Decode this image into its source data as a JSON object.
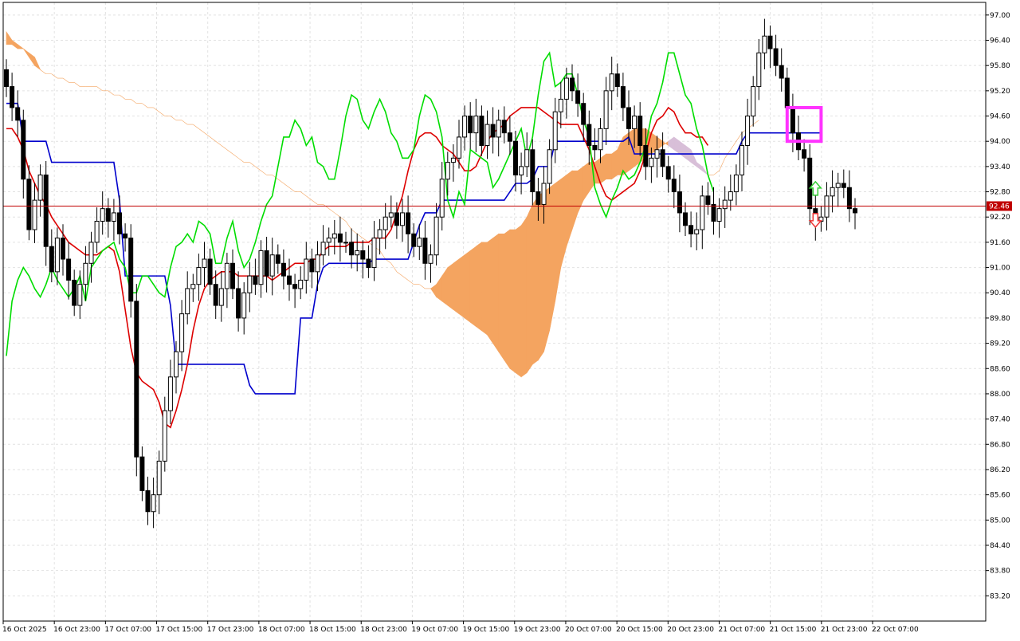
{
  "chart_data": {
    "type": "candlestick",
    "price_axis": {
      "min": 82.6,
      "max": 97.3,
      "ticks": [
        "97.00",
        "96.40",
        "95.80",
        "95.20",
        "94.60",
        "94.00",
        "93.40",
        "92.80",
        "92.20",
        "91.60",
        "91.00",
        "90.40",
        "89.80",
        "89.20",
        "88.60",
        "88.00",
        "87.40",
        "86.80",
        "86.20",
        "85.60",
        "85.00",
        "84.40",
        "83.80",
        "83.20"
      ]
    },
    "time_axis": {
      "labels": [
        "16 Oct 2025",
        "16 Oct 23:00",
        "17 Oct 07:00",
        "17 Oct 15:00",
        "17 Oct 23:00",
        "18 Oct 07:00",
        "18 Oct 15:00",
        "18 Oct 23:00",
        "19 Oct 07:00",
        "19 Oct 15:00",
        "19 Oct 23:00",
        "20 Oct 07:00",
        "20 Oct 15:00",
        "20 Oct 23:00",
        "21 Oct 07:00",
        "21 Oct 15:00",
        "21 Oct 23:00",
        "22 Oct 07:00"
      ]
    },
    "current_price": {
      "value": 92.46,
      "label": "92.46",
      "color": "#c00000"
    },
    "grid": true,
    "colors": {
      "tenkan": "#dd0000",
      "kijun": "#0000cc",
      "chikou": "#00dd00",
      "cloud_bull": "#f4a460",
      "cloud_bear": "#d8bfd8",
      "candle_bull": "#ffffff",
      "candle_bear": "#000000",
      "candle_outline": "#000000",
      "box": "#ff33ff",
      "arrow_up": "#33cc33",
      "arrow_down": "#ee3333",
      "current_line": "#c00000"
    },
    "series": {
      "close": [
        95.3,
        94.8,
        94.5,
        93.1,
        91.9,
        92.6,
        93.2,
        91.5,
        90.9,
        91.7,
        91.2,
        90.7,
        90.1,
        90.6,
        91.1,
        91.6,
        92.1,
        92.4,
        92.1,
        92.3,
        91.8,
        91.7,
        90.2,
        86.5,
        85.7,
        85.2,
        85.6,
        86.4,
        87.6,
        88.4,
        89.0,
        89.9,
        90.5,
        90.6,
        91.0,
        91.2,
        90.6,
        90.1,
        90.5,
        91.1,
        90.5,
        89.8,
        90.4,
        90.8,
        90.6,
        91.4,
        90.8,
        91.3,
        91.1,
        90.8,
        90.6,
        90.5,
        90.7,
        91.2,
        90.9,
        91.3,
        91.6,
        91.7,
        91.8,
        91.6,
        91.6,
        91.3,
        91.4,
        91.2,
        91.0,
        91.7,
        91.9,
        92.2,
        92.3,
        92.0,
        92.3,
        91.8,
        91.5,
        91.7,
        91.1,
        91.3,
        92.2,
        93.1,
        93.5,
        93.6,
        94.1,
        94.6,
        94.2,
        94.6,
        93.9,
        94.4,
        94.1,
        94.5,
        94.2,
        94.0,
        93.2,
        93.4,
        93.8,
        92.8,
        92.5,
        93.0,
        93.8,
        94.7,
        95.0,
        95.5,
        95.2,
        94.9,
        94.4,
        93.9,
        93.8,
        94.3,
        95.2,
        95.6,
        95.3,
        94.8,
        94.3,
        94.6,
        93.9,
        93.4,
        93.6,
        93.8,
        93.4,
        93.1,
        92.8,
        92.3,
        92.0,
        91.8,
        91.9,
        92.7,
        92.5,
        92.1,
        92.4,
        92.6,
        92.8,
        93.2,
        93.9,
        94.6,
        95.3,
        96.1,
        96.5,
        96.2,
        95.8,
        95.5,
        94.8,
        94.2,
        93.8,
        93.6,
        92.4,
        92.1,
        92.2,
        92.7,
        92.9,
        93.0,
        92.9,
        92.4,
        92.3
      ],
      "open": [
        95.7,
        95.3,
        94.8,
        94.5,
        93.1,
        91.9,
        92.6,
        93.2,
        91.5,
        90.9,
        91.7,
        91.2,
        90.7,
        90.1,
        90.6,
        91.1,
        91.6,
        92.1,
        92.4,
        92.1,
        92.3,
        91.8,
        91.7,
        90.2,
        86.5,
        85.7,
        85.2,
        85.6,
        86.4,
        87.6,
        88.4,
        89.0,
        89.9,
        90.5,
        90.6,
        91.0,
        91.2,
        90.6,
        90.1,
        90.5,
        91.1,
        90.5,
        89.8,
        90.4,
        90.8,
        90.6,
        91.4,
        90.8,
        91.3,
        91.1,
        90.8,
        90.6,
        90.5,
        90.7,
        91.2,
        90.9,
        91.3,
        91.6,
        91.7,
        91.8,
        91.6,
        91.6,
        91.3,
        91.4,
        91.2,
        91.0,
        91.7,
        91.9,
        92.2,
        92.3,
        92.0,
        92.3,
        91.8,
        91.5,
        91.7,
        91.1,
        91.3,
        92.2,
        93.1,
        93.5,
        93.6,
        94.1,
        94.6,
        94.2,
        94.6,
        93.9,
        94.4,
        94.1,
        94.5,
        94.2,
        94.0,
        93.2,
        93.4,
        93.8,
        92.8,
        92.5,
        93.0,
        93.8,
        94.7,
        95.0,
        95.5,
        95.2,
        94.9,
        94.4,
        93.9,
        93.8,
        94.3,
        95.2,
        95.6,
        95.3,
        94.8,
        94.3,
        94.6,
        93.9,
        93.4,
        93.6,
        93.8,
        93.4,
        93.1,
        92.8,
        92.3,
        92.0,
        91.8,
        91.9,
        92.7,
        92.5,
        92.1,
        92.4,
        92.6,
        92.8,
        93.2,
        93.9,
        94.6,
        95.3,
        96.1,
        96.5,
        96.2,
        95.8,
        95.5,
        94.8,
        94.2,
        93.8,
        93.6,
        92.4,
        92.1,
        92.2,
        92.7,
        92.9,
        93.0,
        92.9,
        92.4
      ],
      "tenkan": [
        94.3,
        94.3,
        94.1,
        93.8,
        93.3,
        93.0,
        92.7,
        92.5,
        92.2,
        92.0,
        91.8,
        91.6,
        91.5,
        91.4,
        91.3,
        91.3,
        91.3,
        91.4,
        91.5,
        91.4,
        90.9,
        90.0,
        89.1,
        88.5,
        88.3,
        88.2,
        88.1,
        87.8,
        87.3,
        87.2,
        87.6,
        88.1,
        88.7,
        89.5,
        90.1,
        90.5,
        90.7,
        90.8,
        90.9,
        90.9,
        90.9,
        90.8,
        90.8,
        90.8,
        90.8,
        90.8,
        90.8,
        90.7,
        90.8,
        90.9,
        91.0,
        91.1,
        91.1,
        91.1,
        91.2,
        91.2,
        91.4,
        91.5,
        91.5,
        91.5,
        91.5,
        91.6,
        91.6,
        91.6,
        91.6,
        91.7,
        91.7,
        91.7,
        91.9,
        92.3,
        92.7,
        93.3,
        93.8,
        94.1,
        94.2,
        94.2,
        94.1,
        93.9,
        93.8,
        93.7,
        93.5,
        93.3,
        93.3,
        93.4,
        93.7,
        94.0,
        94.2,
        94.3,
        94.4,
        94.6,
        94.7,
        94.8,
        94.8,
        94.8,
        94.8,
        94.7,
        94.6,
        94.5,
        94.4,
        94.4,
        94.4,
        94.4,
        94.1,
        93.8,
        93.4,
        93.0,
        92.7,
        92.6,
        92.7,
        92.8,
        92.9,
        93.0,
        93.3,
        93.7,
        94.2,
        94.5,
        94.6,
        94.8,
        94.7,
        94.4,
        94.2,
        94.2,
        94.1,
        94.1,
        93.9
      ],
      "kijun": [
        94.9,
        94.9,
        94.9,
        94.0,
        94.0,
        94.0,
        94.0,
        94.0,
        93.5,
        93.5,
        93.5,
        93.5,
        93.5,
        93.5,
        93.5,
        93.5,
        93.5,
        93.5,
        93.5,
        93.5,
        92.6,
        90.8,
        90.8,
        90.8,
        90.8,
        90.8,
        90.8,
        90.8,
        90.8,
        90.1,
        88.7,
        88.7,
        88.7,
        88.7,
        88.7,
        88.7,
        88.7,
        88.7,
        88.7,
        88.7,
        88.7,
        88.7,
        88.7,
        88.2,
        88.0,
        88.0,
        88.0,
        88.0,
        88.0,
        88.0,
        88.0,
        88.0,
        89.8,
        89.8,
        89.8,
        90.6,
        91.0,
        91.1,
        91.1,
        91.1,
        91.1,
        91.1,
        91.1,
        91.1,
        91.1,
        91.2,
        91.2,
        91.2,
        91.2,
        91.2,
        91.2,
        91.2,
        91.6,
        92.0,
        92.3,
        92.3,
        92.3,
        92.6,
        92.6,
        92.6,
        92.6,
        92.6,
        92.6,
        92.6,
        92.6,
        92.6,
        92.6,
        92.6,
        92.6,
        92.8,
        93.0,
        93.0,
        93.0,
        93.1,
        93.4,
        93.4,
        93.4,
        94.0,
        94.0,
        94.0,
        94.0,
        94.0,
        94.0,
        94.0,
        94.0,
        94.0,
        94.0,
        94.0,
        94.0,
        94.0,
        94.1,
        93.7,
        93.7,
        93.7,
        93.7,
        93.7,
        93.7,
        93.7,
        93.7,
        93.7,
        93.7,
        93.7,
        93.7,
        93.7,
        93.7,
        93.7,
        93.7,
        93.7,
        93.7,
        93.7,
        94.0,
        94.2,
        94.2,
        94.2,
        94.2,
        94.2,
        94.2,
        94.2,
        94.2,
        94.2,
        94.2,
        94.2,
        94.2,
        94.2,
        94.2
      ],
      "chikou": [
        88.9,
        90.2,
        90.7,
        91.0,
        90.8,
        90.5,
        90.3,
        90.6,
        91.0,
        90.7,
        90.5,
        90.3,
        90.5,
        90.8,
        90.2,
        91.0,
        91.2,
        91.4,
        91.5,
        91.6,
        91.2,
        91.0,
        90.4,
        90.4,
        90.8,
        90.8,
        90.6,
        90.4,
        90.3,
        91.0,
        91.5,
        91.6,
        91.8,
        91.6,
        92.1,
        92.0,
        91.8,
        91.1,
        91.1,
        91.7,
        92.1,
        91.4,
        91.0,
        91.2,
        91.6,
        92.1,
        92.5,
        92.7,
        93.4,
        94.1,
        94.1,
        94.5,
        94.3,
        93.9,
        94.1,
        93.5,
        93.4,
        93.1,
        93.1,
        93.8,
        94.6,
        95.1,
        95.0,
        94.5,
        94.3,
        94.7,
        95.0,
        94.7,
        94.2,
        94.0,
        93.6,
        93.6,
        93.8,
        94.6,
        95.1,
        95.0,
        94.7,
        94.1,
        92.6,
        92.2,
        92.8,
        92.5,
        93.8,
        93.7,
        93.6,
        93.5,
        92.9,
        93.1,
        93.4,
        93.7,
        94.0,
        94.3,
        93.6,
        94.1,
        95.1,
        95.9,
        96.1,
        95.3,
        95.4,
        95.6,
        95.6,
        95.1,
        94.5,
        94.1,
        92.9,
        92.5,
        92.2,
        92.6,
        92.9,
        93.3,
        93.1,
        93.2,
        93.5,
        93.9,
        94.6,
        94.9,
        95.4,
        96.1,
        96.1,
        95.6,
        95.1,
        94.9,
        94.3,
        93.9,
        93.2,
        92.8
      ],
      "senkou_a": [
        96.6,
        96.4,
        96.3,
        96.2,
        96.1,
        96.0,
        95.7,
        95.6,
        95.6,
        95.5,
        95.5,
        95.4,
        95.4,
        95.3,
        95.3,
        95.3,
        95.3,
        95.2,
        95.2,
        95.1,
        95.1,
        95.0,
        95.0,
        94.9,
        94.9,
        94.8,
        94.8,
        94.7,
        94.6,
        94.6,
        94.5,
        94.5,
        94.4,
        94.4,
        94.3,
        94.2,
        94.1,
        94.0,
        93.9,
        93.8,
        93.7,
        93.6,
        93.5,
        93.5,
        93.4,
        93.3,
        93.2,
        93.2,
        93.1,
        93.0,
        92.9,
        92.8,
        92.8,
        92.7,
        92.6,
        92.5,
        92.5,
        92.4,
        92.3,
        92.2,
        92.1,
        91.9,
        91.8,
        91.7,
        91.6,
        91.5,
        91.4,
        91.2,
        91.1,
        90.9,
        90.8,
        90.7,
        90.6,
        90.6,
        90.5,
        90.5,
        90.6,
        90.8,
        91.0,
        91.1,
        91.2,
        91.3,
        91.4,
        91.5,
        91.6,
        91.6,
        91.7,
        91.8,
        91.8,
        91.9,
        91.9,
        92.0,
        92.2,
        92.5,
        92.7,
        92.8,
        92.9,
        93.0,
        93.1,
        93.2,
        93.3,
        93.3,
        93.4,
        93.5,
        93.5,
        93.6,
        93.7,
        93.7,
        93.8,
        94.1,
        94.2,
        94.3,
        94.3,
        94.3,
        94.2,
        94.1,
        94.0,
        93.9,
        93.8,
        93.7,
        93.6,
        93.5,
        93.4,
        93.3,
        93.2,
        93.2,
        93.3,
        93.6,
        93.8,
        94.0,
        94.2,
        94.3,
        94.4,
        94.5
      ],
      "senkou_b": [
        96.3,
        96.3,
        96.2,
        96.2,
        96.0,
        95.8,
        95.7,
        95.6,
        95.6,
        95.5,
        95.5,
        95.4,
        95.4,
        95.3,
        95.3,
        95.3,
        95.3,
        95.2,
        95.2,
        95.1,
        95.1,
        95.0,
        95.0,
        94.9,
        94.9,
        94.8,
        94.8,
        94.7,
        94.6,
        94.6,
        94.5,
        94.5,
        94.4,
        94.4,
        94.3,
        94.2,
        94.1,
        94.0,
        93.9,
        93.8,
        93.7,
        93.6,
        93.5,
        93.5,
        93.4,
        93.3,
        93.2,
        93.2,
        93.1,
        93.0,
        92.9,
        92.8,
        92.8,
        92.7,
        92.6,
        92.5,
        92.5,
        92.4,
        92.3,
        92.2,
        92.1,
        91.9,
        91.8,
        91.7,
        91.6,
        91.5,
        91.4,
        91.2,
        91.1,
        90.9,
        90.8,
        90.7,
        90.6,
        90.6,
        90.5,
        90.5,
        90.3,
        90.2,
        90.1,
        90.0,
        89.9,
        89.8,
        89.7,
        89.6,
        89.5,
        89.4,
        89.2,
        89.0,
        88.8,
        88.6,
        88.5,
        88.4,
        88.5,
        88.7,
        88.8,
        89.0,
        89.5,
        90.2,
        91.0,
        91.5,
        91.9,
        92.3,
        92.6,
        92.8,
        93.0,
        93.0,
        93.1,
        93.1,
        93.2,
        93.2,
        93.3,
        93.4,
        93.5,
        93.6,
        93.7,
        93.8,
        93.9,
        94.0,
        94.1,
        94.0,
        93.9,
        93.8,
        93.5,
        93.4,
        93.2,
        93.2,
        93.3,
        93.6,
        93.8,
        94.0,
        94.2,
        94.3,
        94.4,
        94.5
      ]
    },
    "highlight_box": {
      "start_index": 138,
      "end_index": 144,
      "top": 94.8,
      "bottom": 94.0
    },
    "signals": [
      {
        "type": "buy",
        "index": 143,
        "price": 92.85
      },
      {
        "type": "sell",
        "index": 143,
        "price": 92.15
      }
    ]
  }
}
